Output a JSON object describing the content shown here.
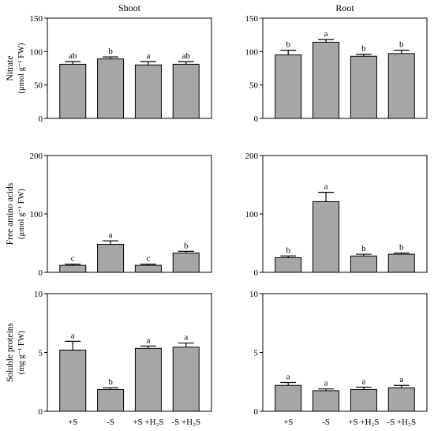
{
  "chart_data": [
    {
      "type": "bar",
      "title": "Shoot",
      "ylabel": "Nitrate",
      "ylabel_unit": "(μmol g⁻¹ FW)",
      "ylim": [
        0,
        150
      ],
      "yticks": [
        "0",
        "50",
        "100",
        "150"
      ],
      "categories": [
        "+S",
        "-S",
        "+S +H₂S",
        "-S +H₂S"
      ],
      "values": [
        81,
        89,
        80,
        81
      ],
      "errors": [
        4,
        3,
        5,
        4
      ],
      "letters": [
        "ab",
        "b",
        "a",
        "ab"
      ]
    },
    {
      "type": "bar",
      "title": "Root",
      "ylabel": "",
      "ylabel_unit": "",
      "ylim": [
        0,
        150
      ],
      "yticks": [
        "0",
        "50",
        "100",
        "150"
      ],
      "categories": [
        "+S",
        "-S",
        "+S +H₂S",
        "-S +H₂S"
      ],
      "values": [
        95,
        114,
        93,
        97
      ],
      "errors": [
        7,
        4,
        3,
        5
      ],
      "letters": [
        "b",
        "a",
        "b",
        "b"
      ]
    },
    {
      "type": "bar",
      "title": "",
      "ylabel": "Free amino acids",
      "ylabel_unit": "(μmol g⁻¹ FW)",
      "ylim": [
        0,
        200
      ],
      "yticks": [
        "0",
        "100",
        "200"
      ],
      "categories": [
        "+S",
        "-S",
        "+S +H₂S",
        "-S +H₂S"
      ],
      "values": [
        12,
        48,
        12,
        33
      ],
      "errors": [
        2,
        6,
        2,
        3
      ],
      "letters": [
        "c",
        "a",
        "c",
        "b"
      ]
    },
    {
      "type": "bar",
      "title": "",
      "ylabel": "",
      "ylabel_unit": "",
      "ylim": [
        0,
        200
      ],
      "yticks": [
        "0",
        "100",
        "200"
      ],
      "categories": [
        "+S",
        "-S",
        "+S +H₂S",
        "-S +H₂S"
      ],
      "values": [
        25,
        121,
        28,
        31
      ],
      "errors": [
        3,
        16,
        3,
        2
      ],
      "letters": [
        "b",
        "a",
        "b",
        "b"
      ]
    },
    {
      "type": "bar",
      "title": "",
      "ylabel": "Soluble proteins",
      "ylabel_unit": "(mg g⁻¹ FW)",
      "ylim": [
        0,
        10
      ],
      "yticks": [
        "0",
        "5",
        "10"
      ],
      "categories": [
        "+S",
        "-S",
        "+S +H₂S",
        "-S +H₂S"
      ],
      "values": [
        5.2,
        1.85,
        5.35,
        5.45
      ],
      "errors": [
        0.75,
        0.15,
        0.2,
        0.35
      ],
      "letters": [
        "a",
        "b",
        "a",
        "a"
      ]
    },
    {
      "type": "bar",
      "title": "",
      "ylabel": "",
      "ylabel_unit": "",
      "ylim": [
        0,
        10
      ],
      "yticks": [
        "0",
        "5",
        "10"
      ],
      "categories": [
        "+S",
        "-S",
        "+S +H₂S",
        "-S +H₂S"
      ],
      "values": [
        2.2,
        1.75,
        1.85,
        2.0
      ],
      "errors": [
        0.25,
        0.15,
        0.2,
        0.2
      ],
      "letters": [
        "a",
        "a",
        "a",
        "a"
      ]
    }
  ],
  "colors": {
    "bar": "#a6a6a6",
    "stroke": "#000000"
  }
}
